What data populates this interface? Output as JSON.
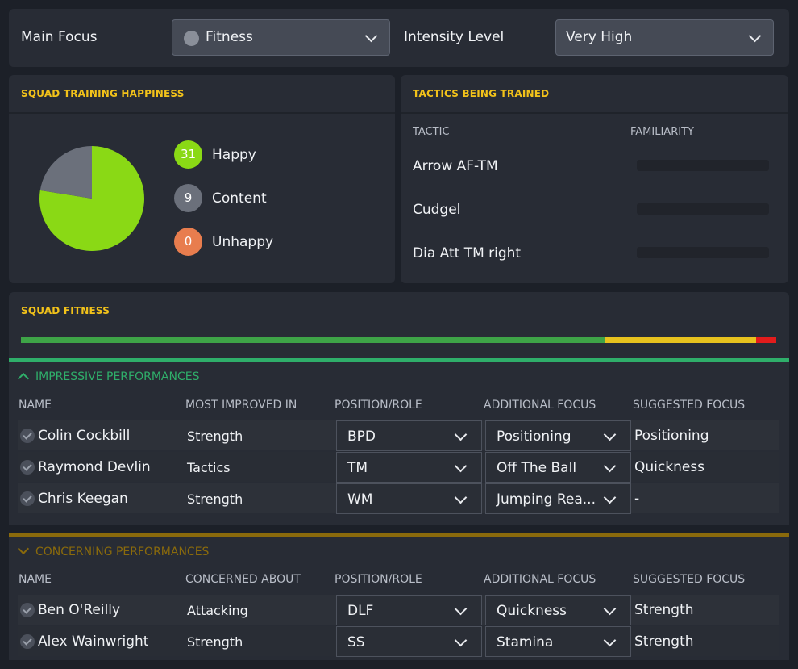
{
  "top": {
    "main_focus_label": "Main Focus",
    "main_focus_value": "Fitness",
    "intensity_label": "Intensity Level",
    "intensity_value": "Very High"
  },
  "happiness": {
    "title": "SQUAD TRAINING HAPPINESS",
    "items": [
      {
        "count": "31",
        "label": "Happy",
        "color": "#8ad915"
      },
      {
        "count": "9",
        "label": "Content",
        "color": "#6b707b"
      },
      {
        "count": "0",
        "label": "Unhappy",
        "color": "#e87d4e"
      }
    ]
  },
  "chart_data": {
    "type": "pie",
    "categories": [
      "Happy",
      "Content",
      "Unhappy"
    ],
    "values": [
      31,
      9,
      0
    ],
    "colors": [
      "#8ad915",
      "#6b707b",
      "#e87d4e"
    ]
  },
  "tactics": {
    "title": "TACTICS BEING TRAINED",
    "col_tactic": "TACTIC",
    "col_familiarity": "FAMILIARITY",
    "rows": [
      {
        "name": "Arrow AF-TM",
        "familiarity": 0
      },
      {
        "name": "Cudgel",
        "familiarity": 0
      },
      {
        "name": "Dia Att TM right",
        "familiarity": 0
      }
    ]
  },
  "fitness": {
    "title": "SQUAD FITNESS",
    "segments": [
      {
        "fraction": 0.774,
        "color": "#3ea447"
      },
      {
        "fraction": 0.199,
        "color": "#e7c21e"
      },
      {
        "fraction": 0.027,
        "color": "#e31c1c"
      }
    ]
  },
  "impressive": {
    "title": "IMPRESSIVE PERFORMANCES",
    "accent": "#2fae6a",
    "headers": [
      "NAME",
      "MOST IMPROVED IN",
      "POSITION/ROLE",
      "ADDITIONAL FOCUS",
      "SUGGESTED FOCUS"
    ],
    "rows": [
      {
        "name": "Colin Cockbill",
        "improved": "Strength",
        "role": "BPD",
        "additional": "Positioning",
        "suggested": "Positioning"
      },
      {
        "name": "Raymond Devlin",
        "improved": "Tactics",
        "role": "TM",
        "additional": "Off The Ball",
        "suggested": "Quickness"
      },
      {
        "name": "Chris Keegan",
        "improved": "Strength",
        "role": "WM",
        "additional": "Jumping Rea...",
        "suggested": "-"
      }
    ]
  },
  "concerning": {
    "title": "CONCERNING PERFORMANCES",
    "accent": "#8a6a0c",
    "headers": [
      "NAME",
      "CONCERNED ABOUT",
      "POSITION/ROLE",
      "ADDITIONAL FOCUS",
      "SUGGESTED FOCUS"
    ],
    "rows": [
      {
        "name": "Ben O'Reilly",
        "concern": "Attacking",
        "role": "DLF",
        "additional": "Quickness",
        "suggested": "Strength"
      },
      {
        "name": "Alex Wainwright",
        "concern": "Strength",
        "role": "SS",
        "additional": "Stamina",
        "suggested": "Strength"
      }
    ]
  }
}
